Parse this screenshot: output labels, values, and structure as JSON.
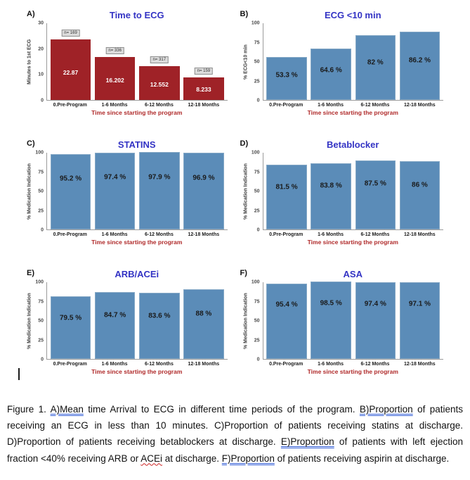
{
  "colors": {
    "title_blue": "#3333c4",
    "axis_label_red": "#b02b2b",
    "red_bar": "#9f2227",
    "blue_bar": "#5b8cb8",
    "blue_bar_border": "#86a9c6"
  },
  "chart_data": [
    {
      "type": "bar",
      "panel_label": "A)",
      "title": "Time to ECG",
      "xlabel": "Time since starting the program",
      "ylabel": "Minutes to 1st ECG",
      "categories": [
        "0.Pre-Program",
        "1-6 Months",
        "6-12 Months",
        "12-18 Months"
      ],
      "values": [
        22.87,
        16.202,
        12.552,
        8.233
      ],
      "value_labels": [
        "22.87",
        "16.202",
        "12.552",
        "8.233"
      ],
      "n_labels": [
        "n= 169",
        "n= 336",
        "n= 317",
        "n= 159"
      ],
      "ylim": [
        0,
        30
      ],
      "yticks": [
        0,
        10,
        20,
        30
      ],
      "bar_color": "#9f2227",
      "bar_border": "#9f2227",
      "value_label_color": "#ffffff",
      "label_frac": 0.45
    },
    {
      "type": "bar",
      "panel_label": "B)",
      "title": "ECG <10 min",
      "xlabel": "Time since starting the program",
      "ylabel": "% ECG<10 min",
      "categories": [
        "0.Pre-Program",
        "1-6 Months",
        "6-12 Months",
        "12-18 Months"
      ],
      "values": [
        53.3,
        64.6,
        82,
        86.2
      ],
      "value_labels": [
        "53.3 %",
        "64.6 %",
        "82 %",
        "86.2 %"
      ],
      "n_labels": null,
      "ylim": [
        0,
        100
      ],
      "yticks": [
        0,
        25,
        50,
        75,
        100
      ],
      "bar_color": "#5b8cb8",
      "bar_border": "#86a9c6",
      "value_label_color": "#1a1a1a",
      "label_frac": 0.58
    },
    {
      "type": "bar",
      "panel_label": "C)",
      "title": "STATINS",
      "xlabel": "Time since starting the program",
      "ylabel": "% Medication Indication",
      "categories": [
        "0.Pre-Program",
        "1-6 Months",
        "6-12 Months",
        "12-18 Months"
      ],
      "values": [
        95.2,
        97.4,
        97.9,
        96.9
      ],
      "value_labels": [
        "95.2 %",
        "97.4 %",
        "97.9 %",
        "96.9 %"
      ],
      "n_labels": null,
      "ylim": [
        0,
        100
      ],
      "yticks": [
        0,
        25,
        50,
        75,
        100
      ],
      "bar_color": "#5b8cb8",
      "bar_border": "#86a9c6",
      "value_label_color": "#1a1a1a",
      "label_frac": 0.68
    },
    {
      "type": "bar",
      "panel_label": "D)",
      "title": "Betablocker",
      "xlabel": "Time since starting the program",
      "ylabel": "% Medication Indication",
      "categories": [
        "0.Pre-Program",
        "1-6 Months",
        "6-12 Months",
        "12-18 Months"
      ],
      "values": [
        81.5,
        83.8,
        87.5,
        86
      ],
      "value_labels": [
        "81.5 %",
        "83.8 %",
        "87.5 %",
        "86 %"
      ],
      "n_labels": null,
      "ylim": [
        0,
        100
      ],
      "yticks": [
        0,
        25,
        50,
        75,
        100
      ],
      "bar_color": "#5b8cb8",
      "bar_border": "#86a9c6",
      "value_label_color": "#1a1a1a",
      "label_frac": 0.66
    },
    {
      "type": "bar",
      "panel_label": "E)",
      "title": "ARB/ACEi",
      "xlabel": "Time since starting the program",
      "ylabel": "% Medication Indication",
      "categories": [
        "0.Pre-Program",
        "1-6 Months",
        "6-12 Months",
        "12-18 Months"
      ],
      "values": [
        79.5,
        84.7,
        83.6,
        88
      ],
      "value_labels": [
        "79.5 %",
        "84.7 %",
        "83.6 %",
        "88 %"
      ],
      "n_labels": null,
      "ylim": [
        0,
        100
      ],
      "yticks": [
        0,
        25,
        50,
        75,
        100
      ],
      "bar_color": "#5b8cb8",
      "bar_border": "#86a9c6",
      "value_label_color": "#1a1a1a",
      "label_frac": 0.65
    },
    {
      "type": "bar",
      "panel_label": "F)",
      "title": "ASA",
      "xlabel": "Time since starting the program",
      "ylabel": "% Medication Indication",
      "categories": [
        "0.Pre-Program",
        "1-6 Months",
        "6-12 Months",
        "12-18 Months"
      ],
      "values": [
        95.4,
        98.5,
        97.4,
        97.1
      ],
      "value_labels": [
        "95.4 %",
        "98.5 %",
        "97.4 %",
        "97.1 %"
      ],
      "n_labels": null,
      "ylim": [
        0,
        100
      ],
      "yticks": [
        0,
        25,
        50,
        75,
        100
      ],
      "bar_color": "#5b8cb8",
      "bar_border": "#86a9c6",
      "value_label_color": "#1a1a1a",
      "label_frac": 0.72
    }
  ],
  "caption": {
    "segments": [
      {
        "text": "Figure 1. ",
        "style": "plain"
      },
      {
        "text": "A)Mean",
        "style": "grammar"
      },
      {
        "text": " time Arrival to ECG in different time periods of the program. ",
        "style": "plain"
      },
      {
        "text": "B)Proportion",
        "style": "grammar"
      },
      {
        "text": " of patients receiving an ECG in less than 10 minutes. C)Proportion of patients receiving statins at discharge. D)Proportion of patients receiving betablockers at discharge. ",
        "style": "plain"
      },
      {
        "text": "E)Proportion",
        "style": "grammar"
      },
      {
        "text": " of patients with left ejection fraction <40% receiving ARB or ",
        "style": "plain"
      },
      {
        "text": "ACEi",
        "style": "spell"
      },
      {
        "text": " at discharge. ",
        "style": "plain"
      },
      {
        "text": "F)Proportion",
        "style": "grammar"
      },
      {
        "text": " of patients receiving aspirin at discharge.",
        "style": "plain"
      }
    ]
  }
}
